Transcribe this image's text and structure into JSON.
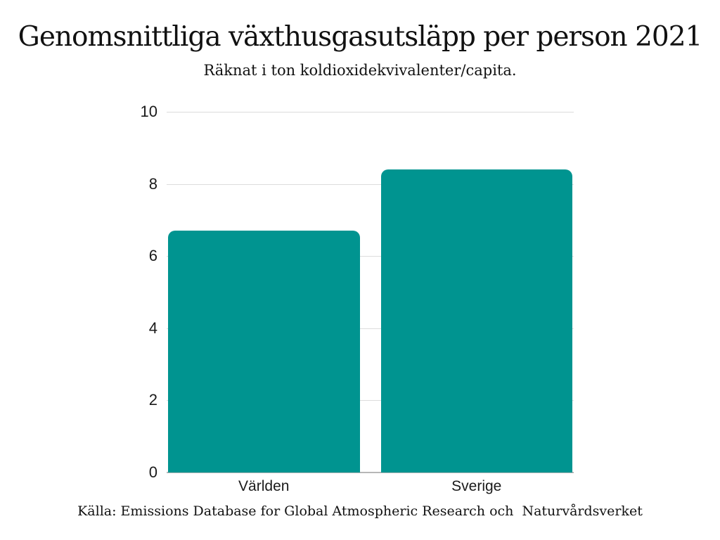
{
  "header": {
    "title": "Genomsnittliga växthusgasutsläpp per person 2021",
    "subtitle": "Räknat i ton koldioxidekvivalenter/capita."
  },
  "footer": {
    "source": "Källa: Emissions Database for Global Atmospheric Research och  Naturvårdsverket"
  },
  "chart_data": {
    "type": "bar",
    "title": "Genomsnittliga växthusgasutsläpp per person 2021",
    "subtitle": "Räknat i ton koldioxidekvivalenter/capita.",
    "source": "Källa: Emissions Database for Global Atmospheric Research och  Naturvårdsverket",
    "categories": [
      "Världen",
      "Sverige"
    ],
    "values": [
      6.7,
      8.4
    ],
    "xlabel": "",
    "ylabel": "",
    "ylim": [
      0,
      10
    ],
    "yticks": [
      0,
      2,
      4,
      6,
      8,
      10
    ],
    "grid": true,
    "legend": "none",
    "colors": {
      "bar": "#009490",
      "gridline": "#dcdcdc",
      "baseline": "#b7b7b7",
      "text": "#1a1a1a"
    }
  }
}
